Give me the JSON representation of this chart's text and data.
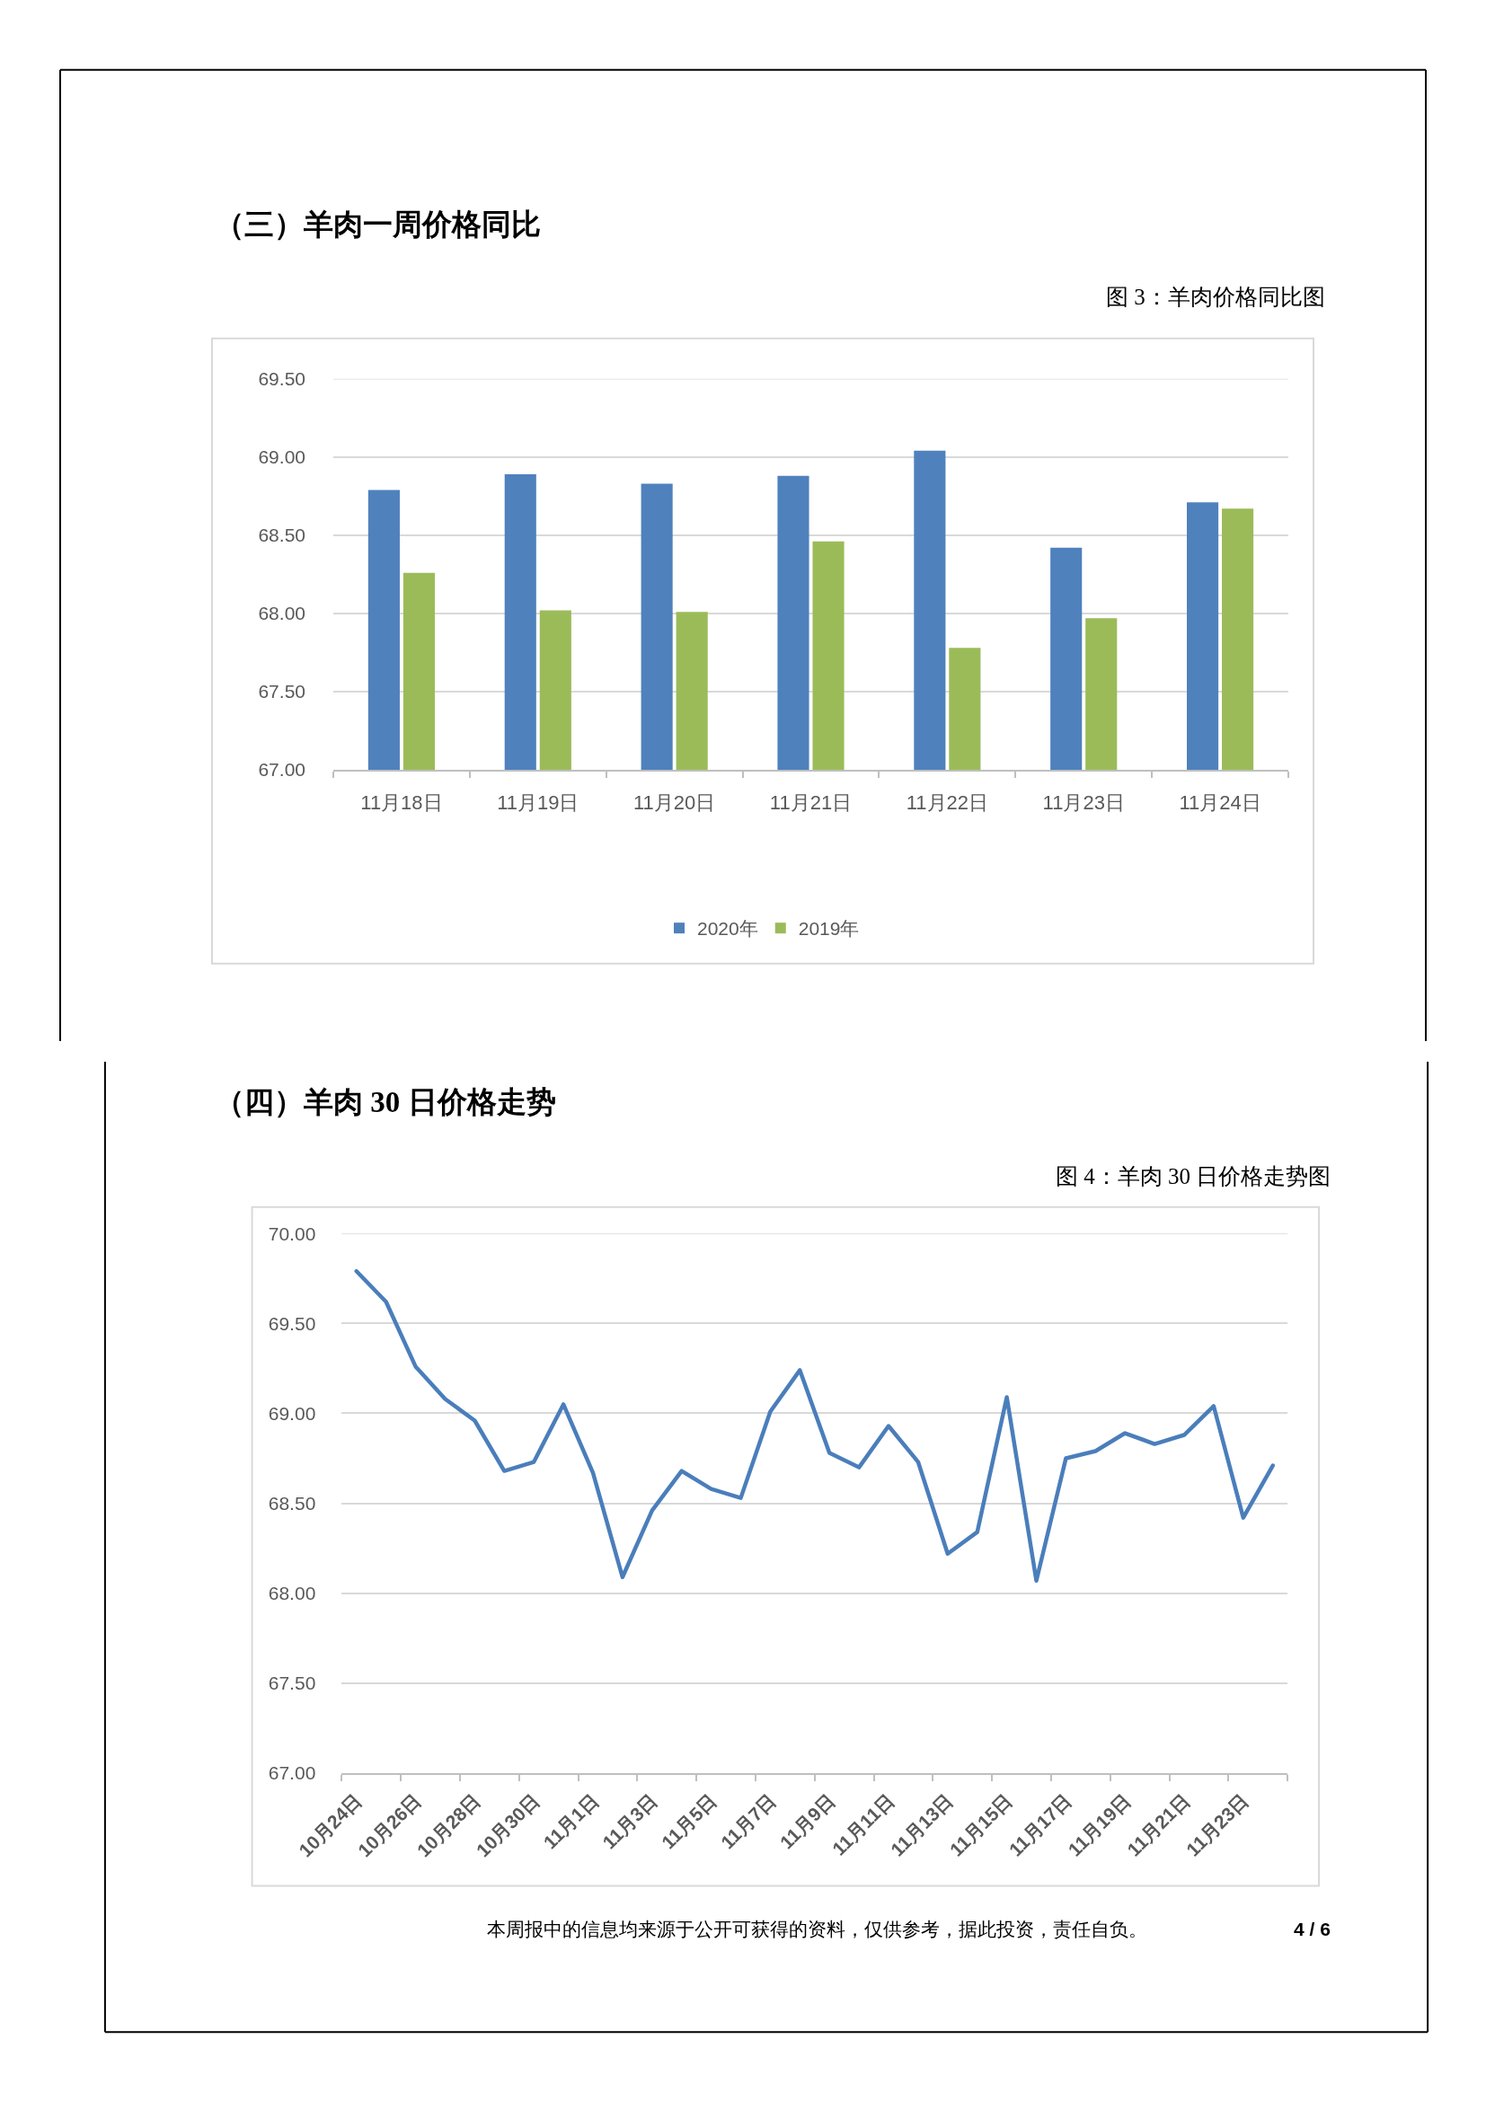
{
  "chart_data": [
    {
      "type": "bar",
      "title": "（三）羊肉一周价格同比",
      "subtitle": "图 3：羊肉价格同比图",
      "categories": [
        "11月18日",
        "11月19日",
        "11月20日",
        "11月21日",
        "11月22日",
        "11月23日",
        "11月24日"
      ],
      "series": [
        {
          "name": "2020年",
          "color": "#4f81bd",
          "values": [
            68.79,
            68.89,
            68.83,
            68.88,
            69.04,
            68.42,
            68.71
          ]
        },
        {
          "name": "2019年",
          "color": "#9bbb59",
          "values": [
            68.26,
            68.02,
            68.01,
            68.46,
            67.78,
            67.97,
            68.67
          ]
        }
      ],
      "ylim": [
        67,
        69.5
      ],
      "yticks": [
        {
          "value": 67,
          "label": "67.00"
        },
        {
          "value": 67.5,
          "label": "67.50"
        },
        {
          "value": 68,
          "label": "68.00"
        },
        {
          "value": 68.5,
          "label": "68.50"
        },
        {
          "value": 69,
          "label": "69.00"
        },
        {
          "value": 69.5,
          "label": "69.50"
        }
      ],
      "grid": "y",
      "legend": "bottom"
    },
    {
      "type": "line",
      "title": "（四）羊肉 30 日价格走势",
      "subtitle": "图 4：羊肉 30 日价格走势图",
      "categories": [
        "10月24日",
        null,
        "10月26日",
        null,
        "10月28日",
        null,
        "10月30日",
        null,
        "11月1日",
        null,
        "11月3日",
        null,
        "11月5日",
        null,
        "11月7日",
        null,
        "11月9日",
        null,
        "11月11日",
        null,
        "11月13日",
        null,
        "11月15日",
        null,
        "11月17日",
        null,
        "11月19日",
        null,
        "11月21日",
        null,
        "11月23日",
        null
      ],
      "series": [
        {
          "color": "#4a7ebb",
          "values": [
            69.79,
            69.62,
            69.26,
            69.08,
            68.96,
            68.68,
            68.73,
            69.05,
            68.67,
            68.09,
            68.46,
            68.68,
            68.58,
            68.53,
            69.01,
            69.24,
            68.78,
            68.7,
            68.93,
            68.73,
            68.22,
            68.34,
            69.09,
            68.07,
            68.75,
            68.79,
            68.89,
            68.83,
            68.88,
            69.04,
            68.42,
            68.71
          ]
        }
      ],
      "ylim": [
        67,
        70
      ],
      "yticks": [
        {
          "value": 67,
          "label": "67.00"
        },
        {
          "value": 67.5,
          "label": "67.50"
        },
        {
          "value": 68,
          "label": "68.00"
        },
        {
          "value": 68.5,
          "label": "68.50"
        },
        {
          "value": 69,
          "label": "69.00"
        },
        {
          "value": 69.5,
          "label": "69.50"
        },
        {
          "value": 70,
          "label": "70.00"
        }
      ],
      "grid": "y",
      "annotations": [
        "本周报中的信息均来源于公开可获得的资料，仅供参考，据此投资，责任自负。",
        "4 / 6"
      ]
    }
  ]
}
